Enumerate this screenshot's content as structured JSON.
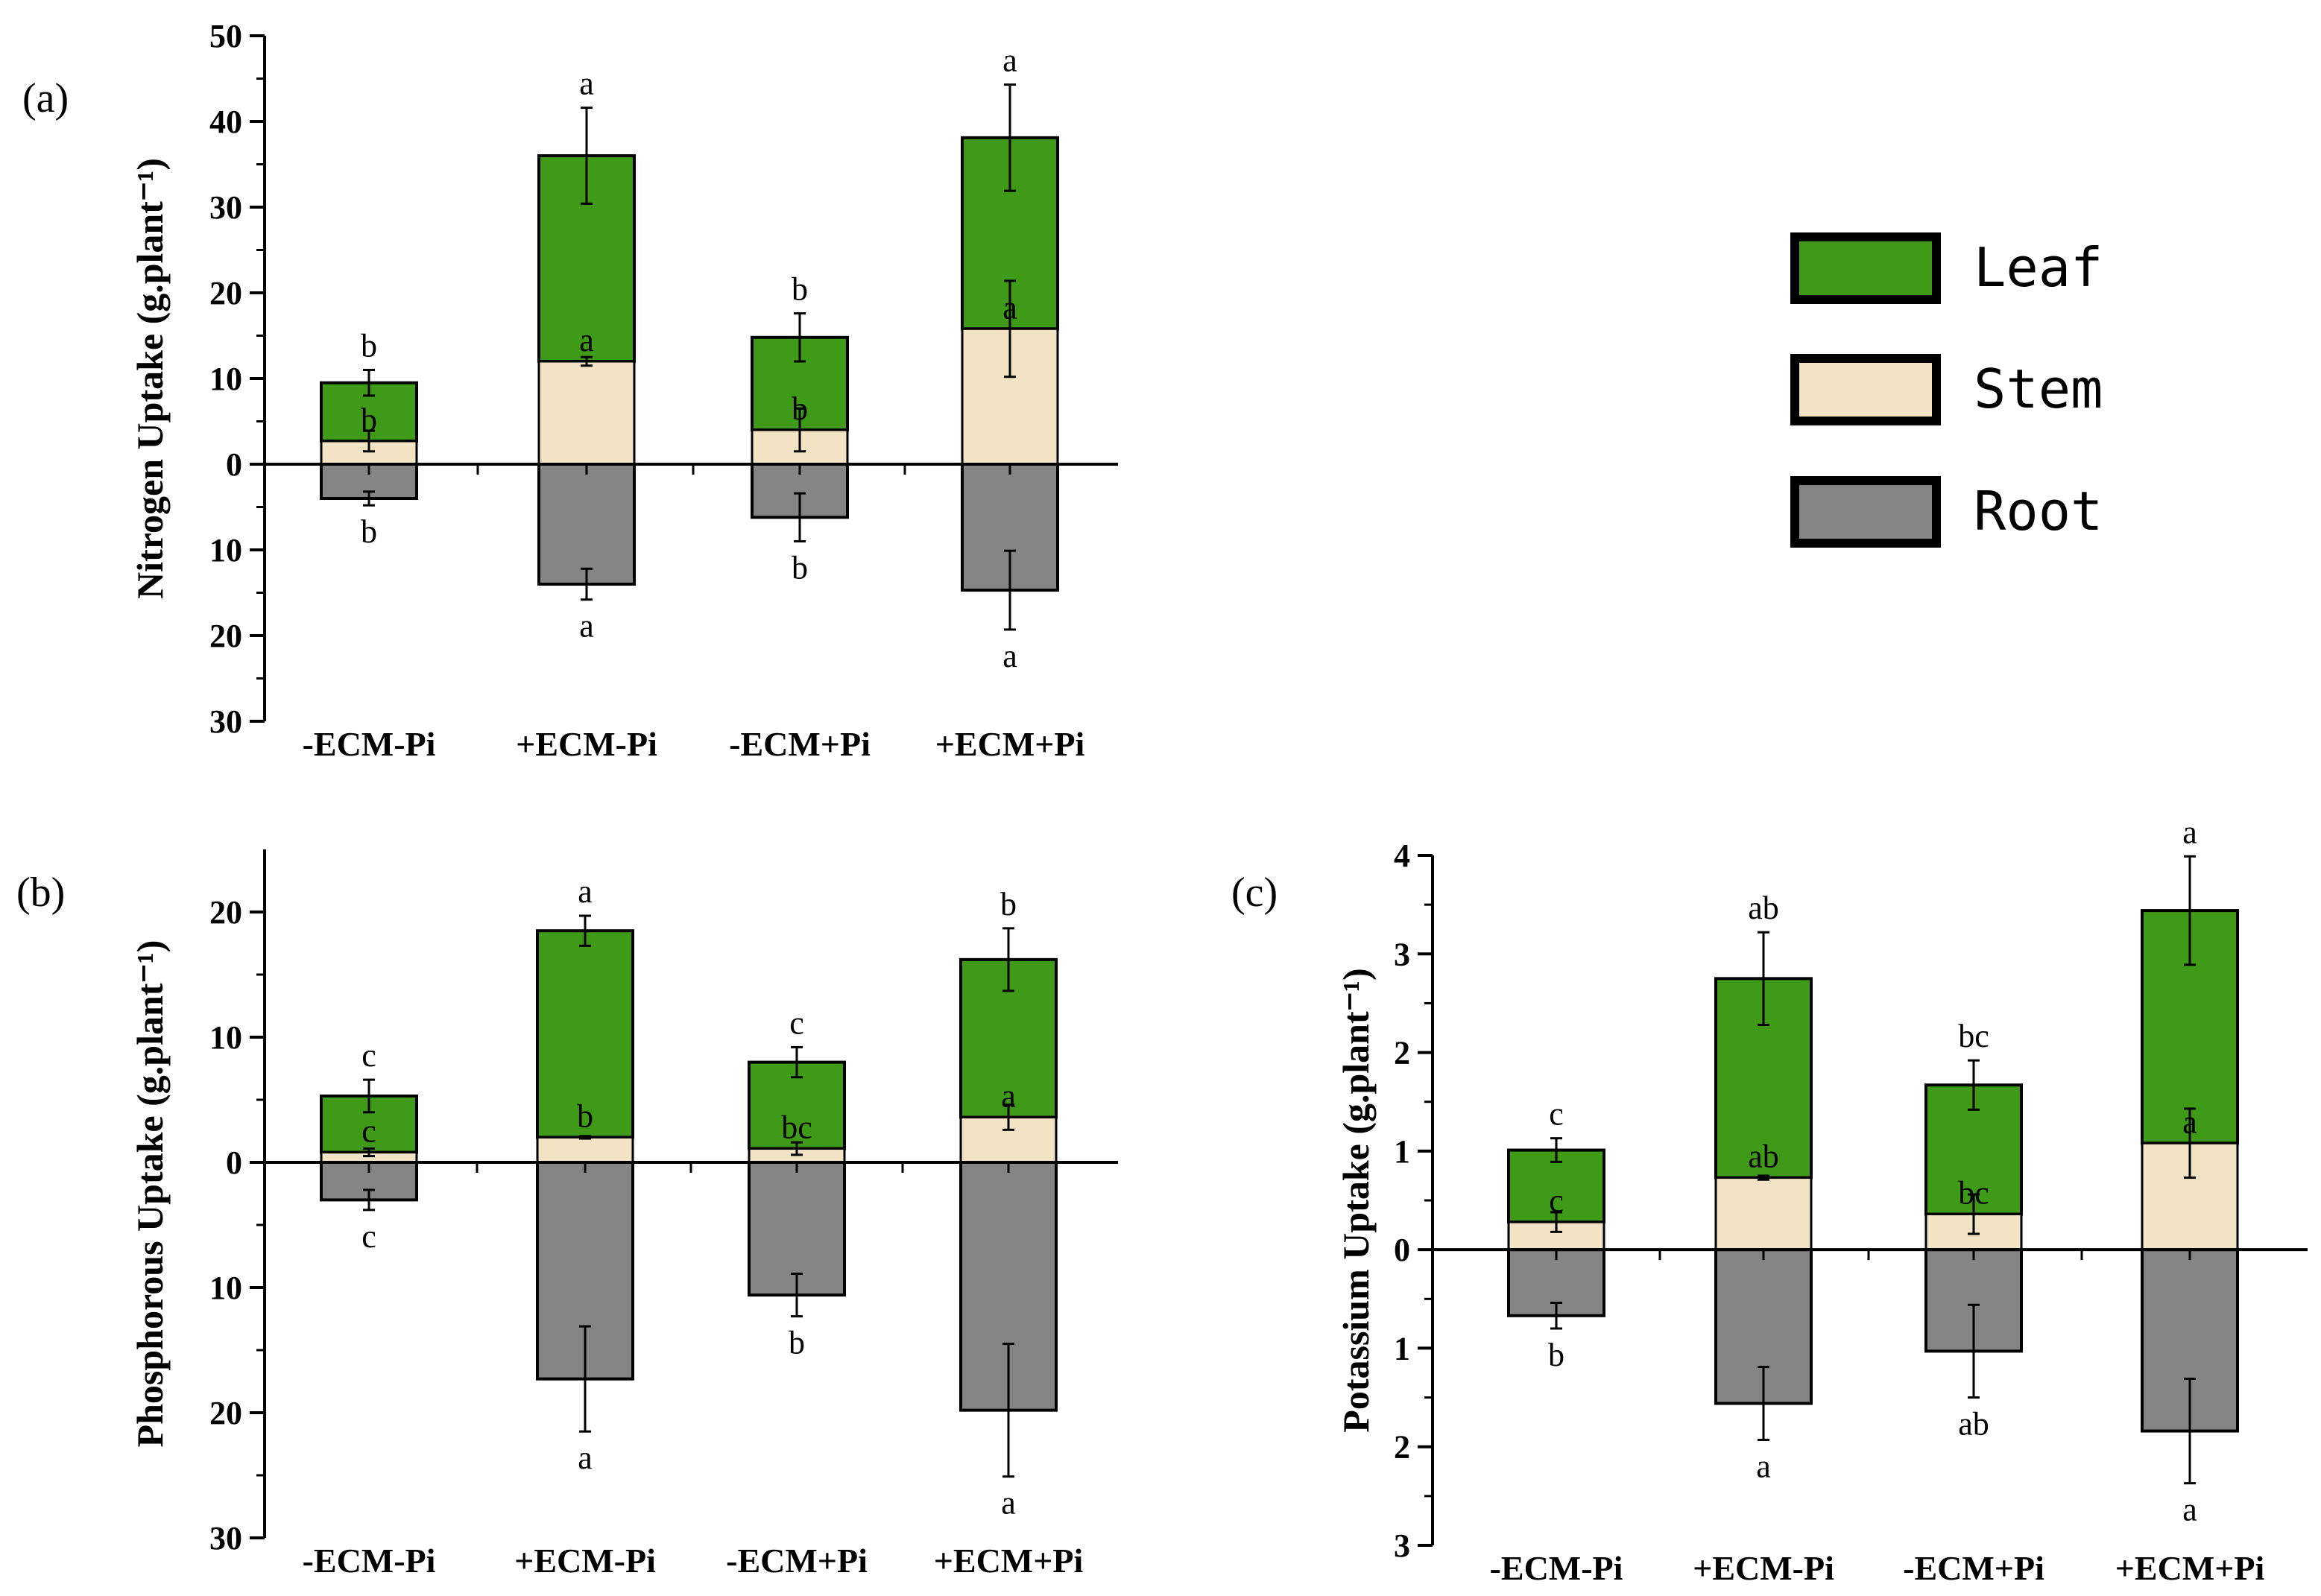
{
  "legend": {
    "items": [
      {
        "label": "Leaf",
        "color": "#3f9a17"
      },
      {
        "label": "Stem",
        "color": "#f1e3c3"
      },
      {
        "label": "Root",
        "color": "#858585"
      }
    ]
  },
  "chart_data": [
    {
      "panel": "(a)",
      "type": "bar",
      "stacked": true,
      "title": "",
      "ylabel": "Nitrogen Uptake (g.plant⁻¹)",
      "xlabel": "",
      "categories": [
        "-ECM-Pi",
        "+ECM-Pi",
        "-ECM+Pi",
        "+ECM+Pi"
      ],
      "ylim": [
        -30,
        50
      ],
      "yticks": [
        -30,
        -20,
        -10,
        0,
        10,
        20,
        30,
        40,
        50
      ],
      "ytick_labels": [
        "30",
        "20",
        "10",
        "0",
        "10",
        "20",
        "30",
        "40",
        "50"
      ],
      "series": [
        {
          "name": "Stem",
          "values": [
            2.7,
            12,
            4,
            15.8
          ],
          "errors": [
            1.2,
            0.5,
            2.5,
            5.6
          ],
          "labels": [
            "b",
            "a",
            "b",
            "a"
          ]
        },
        {
          "name": "Leaf",
          "values": [
            6.8,
            24,
            10.8,
            22.3
          ],
          "errors": [
            1.5,
            5.6,
            2.8,
            6.2
          ],
          "labels": [
            "b",
            "a",
            "b",
            "a"
          ]
        },
        {
          "name": "Root",
          "values": [
            -4,
            -14,
            -6.2,
            -14.7
          ],
          "errors": [
            0.8,
            1.8,
            2.8,
            4.6
          ],
          "labels": [
            "b",
            "a",
            "b",
            "a"
          ]
        }
      ]
    },
    {
      "panel": "(b)",
      "type": "bar",
      "stacked": true,
      "title": "",
      "ylabel": "Phosphorous Uptake (g.plant⁻¹)",
      "xlabel": "",
      "categories": [
        "-ECM-Pi",
        "+ECM-Pi",
        "-ECM+Pi",
        "+ECM+Pi"
      ],
      "ylim": [
        -30,
        25
      ],
      "yticks": [
        -30,
        -20,
        -10,
        0,
        10,
        20
      ],
      "ytick_labels": [
        "30",
        "20",
        "10",
        "0",
        "10",
        "20"
      ],
      "series": [
        {
          "name": "Stem",
          "values": [
            0.8,
            2,
            1.1,
            3.6
          ],
          "errors": [
            0.3,
            0.1,
            0.5,
            1
          ],
          "labels": [
            "c",
            "b",
            "bc",
            "a"
          ]
        },
        {
          "name": "Leaf",
          "values": [
            4.5,
            16.5,
            6.9,
            12.6
          ],
          "errors": [
            1.3,
            1.2,
            1.2,
            2.5
          ],
          "labels": [
            "c",
            "a",
            "c",
            "b"
          ]
        },
        {
          "name": "Root",
          "values": [
            -3,
            -17.3,
            -10.6,
            -19.8
          ],
          "errors": [
            0.8,
            4.2,
            1.7,
            5.3
          ],
          "labels": [
            "c",
            "a",
            "b",
            "a"
          ]
        }
      ]
    },
    {
      "panel": "(c)",
      "type": "bar",
      "stacked": true,
      "title": "",
      "ylabel": "Potassium Uptake (g.plant⁻¹)",
      "xlabel": "",
      "categories": [
        "-ECM-Pi",
        "+ECM-Pi",
        "-ECM+Pi",
        "+ECM+Pi"
      ],
      "ylim": [
        -3,
        4
      ],
      "yticks": [
        -3,
        -2,
        -1,
        0,
        1,
        2,
        3,
        4
      ],
      "ytick_labels": [
        "3",
        "2",
        "1",
        "0",
        "1",
        "2",
        "3",
        "4"
      ],
      "series": [
        {
          "name": "Stem",
          "values": [
            0.28,
            0.73,
            0.36,
            1.08
          ],
          "errors": [
            0.1,
            0.02,
            0.2,
            0.35
          ],
          "labels": [
            "c",
            "ab",
            "bc",
            "a"
          ]
        },
        {
          "name": "Leaf",
          "values": [
            0.73,
            2.02,
            1.31,
            2.36
          ],
          "errors": [
            0.12,
            0.47,
            0.25,
            0.55
          ],
          "labels": [
            "c",
            "ab",
            "bc",
            "a"
          ]
        },
        {
          "name": "Root",
          "values": [
            -0.67,
            -1.56,
            -1.03,
            -1.84
          ],
          "errors": [
            0.13,
            0.37,
            0.47,
            0.53
          ],
          "labels": [
            "b",
            "a",
            "ab",
            "a"
          ]
        }
      ]
    }
  ]
}
